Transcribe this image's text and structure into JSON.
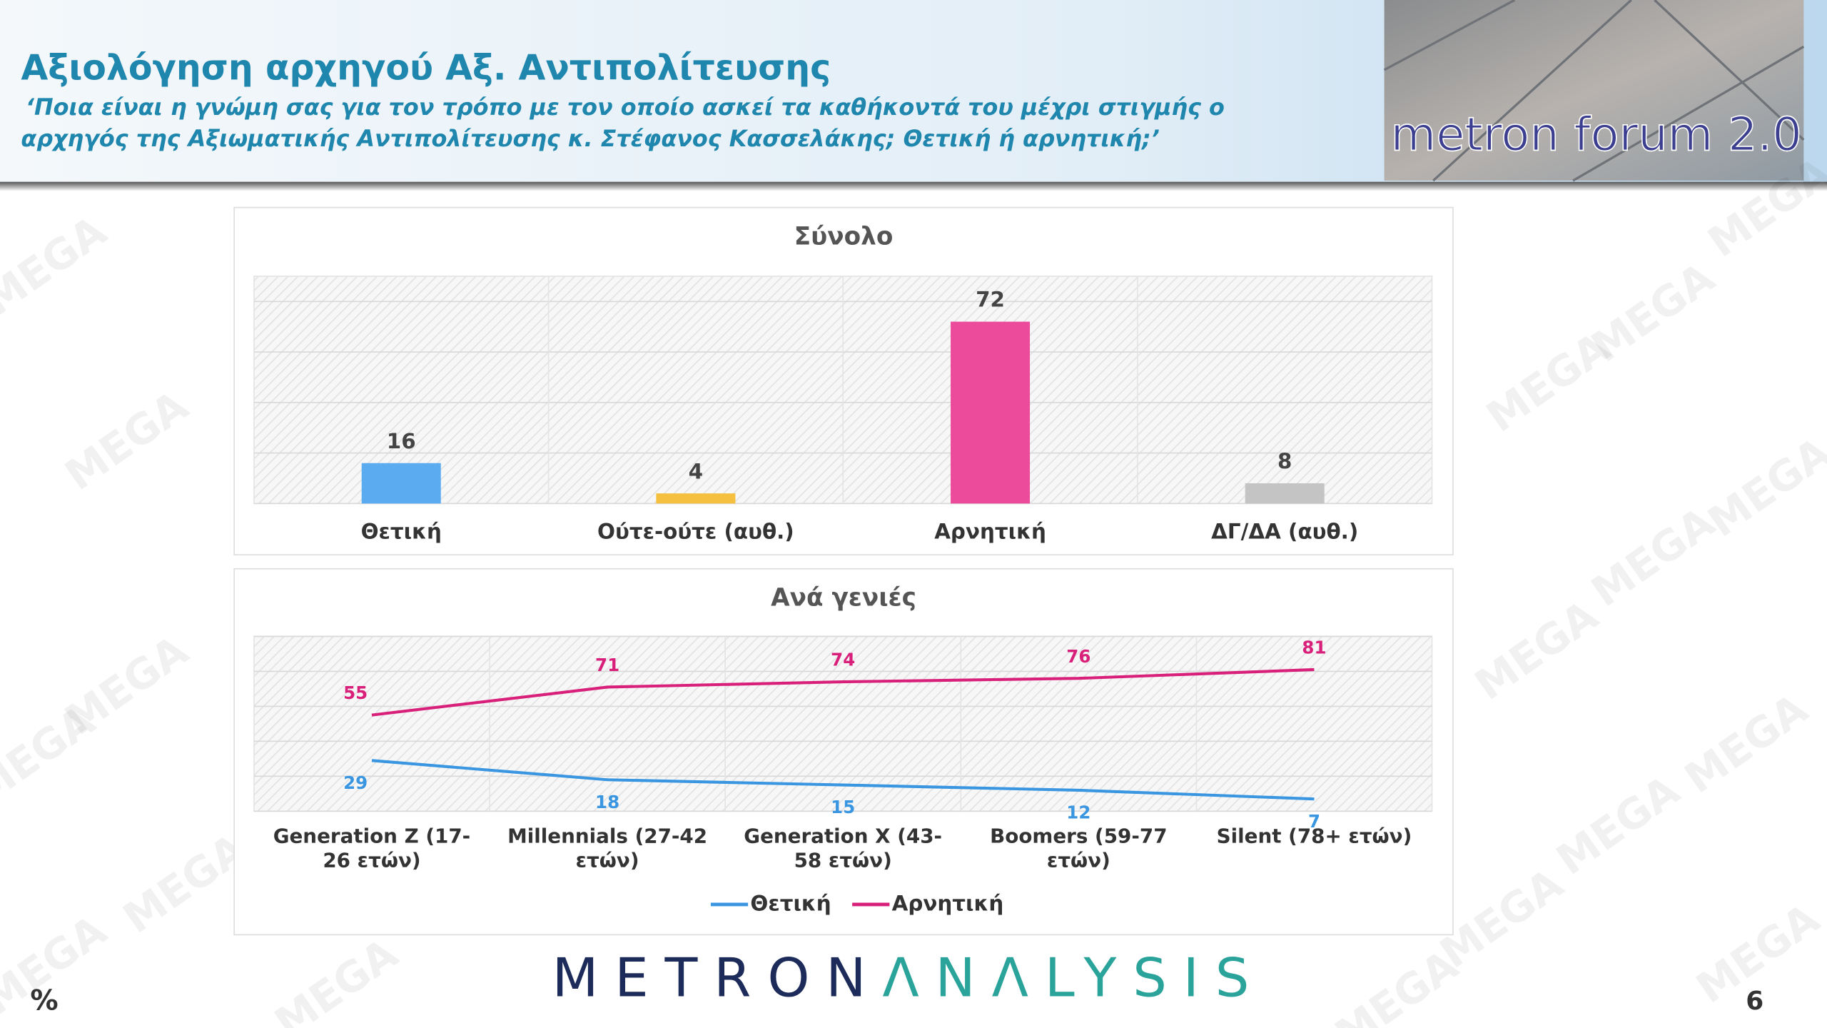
{
  "header": {
    "title": "Αξιολόγηση αρχηγού Αξ. Αντιπολίτευσης",
    "subtitle_line1": "‘Ποια είναι η γνώμη σας για τον τρόπο με τον οποίο ασκεί τα καθήκοντά του μέχρι στιγμής ο",
    "subtitle_line2": "αρχηγός της Αξιωματικής Αντιπολίτευσης κ. Στέφανος Κασσελάκης; Θετική ή αρνητική;’",
    "badge": "metron forum 2.0"
  },
  "footer": {
    "unit": "%",
    "page": "6",
    "logo_part1": "METRON",
    "logo_part2": "ΛNΛLYSIS"
  },
  "watermark": "MEGA",
  "chart_data": [
    {
      "type": "bar",
      "title": "Σύνολο",
      "categories": [
        "Θετική",
        "Ούτε-ούτε (αυθ.)",
        "Αρνητική",
        "ΔΓ/ΔΑ (αυθ.)"
      ],
      "values": [
        16,
        4,
        72,
        8
      ],
      "colors": [
        "#5aabf0",
        "#f5c040",
        "#ec4a9a",
        "#c4c4c4"
      ],
      "ylim": [
        0,
        90
      ],
      "yticks": [
        0,
        20,
        40,
        60,
        80
      ],
      "grid": true
    },
    {
      "type": "line",
      "title": "Ανά γενιές",
      "categories": [
        "Generation Z (17-26 ετών)",
        "Millennials (27-42 ετών)",
        "Generation X (43-58 ετών)",
        "Boomers (59-77 ετών)",
        "Silent (78+ ετών)"
      ],
      "series": [
        {
          "name": "Θετική",
          "color": "#3a96e0",
          "values": [
            29,
            18,
            15,
            12,
            7
          ]
        },
        {
          "name": "Αρνητική",
          "color": "#d8207a",
          "values": [
            55,
            71,
            74,
            76,
            81
          ]
        }
      ],
      "ylim": [
        0,
        100
      ],
      "yticks": [
        0,
        20,
        40,
        60,
        80,
        100
      ],
      "grid": true,
      "legend": "bottom"
    }
  ]
}
